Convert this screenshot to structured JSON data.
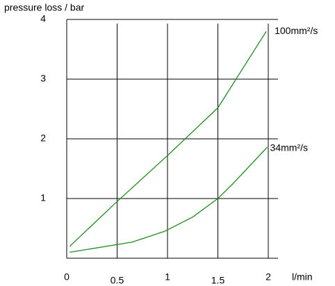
{
  "chart_data": {
    "type": "line",
    "ylabel": "pressure loss / bar",
    "xlabel": "l/min",
    "xlim": [
      0,
      2
    ],
    "xticks": [
      0,
      0.5,
      1,
      1.5,
      2
    ],
    "ylim": [
      0,
      4
    ],
    "yticks": [
      1,
      2,
      3,
      4
    ],
    "grid": true,
    "series": [
      {
        "name": "100mm²/s",
        "color": "#1f8a1f",
        "x": [
          0.03,
          0.5,
          1,
          1.5,
          1.98
        ],
        "values": [
          0.2,
          0.95,
          1.72,
          2.52,
          3.8
        ]
      },
      {
        "name": "34mm²/s",
        "color": "#1f8a1f",
        "x": [
          0.03,
          0.65,
          0.97,
          1.25,
          1.5,
          1.65,
          1.99
        ],
        "values": [
          0.1,
          0.27,
          0.45,
          0.69,
          1.0,
          1.25,
          1.86
        ]
      }
    ]
  }
}
